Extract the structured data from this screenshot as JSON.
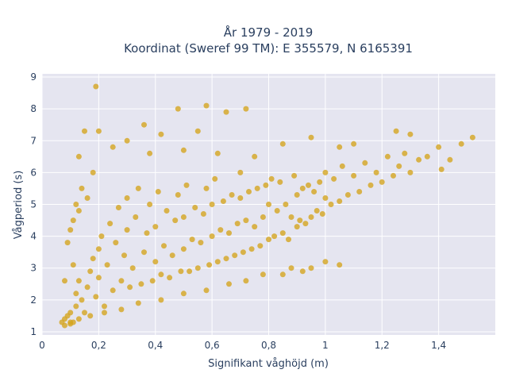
{
  "chart_data": {
    "type": "scatter",
    "title_line1": "År 1979 - 2019",
    "title_line2": "Koordinat (Sweref 99 TM): E 355579, N 6165391",
    "xlabel": "Signifikant våghöjd (m)",
    "ylabel": "Vågperiod (s)",
    "xlim": [
      0,
      1.6
    ],
    "ylim": [
      0.9,
      9.1
    ],
    "x_ticks": [
      0,
      0.2,
      0.4,
      0.6,
      0.8,
      1.0,
      1.2,
      1.4
    ],
    "x_tick_labels": [
      "0",
      "0,2",
      "0,4",
      "0,6",
      "0,8",
      "1",
      "1,2",
      "1,4"
    ],
    "y_ticks": [
      1,
      2,
      3,
      4,
      5,
      6,
      7,
      8,
      9
    ],
    "y_tick_labels": [
      "1",
      "2",
      "3",
      "4",
      "5",
      "6",
      "7",
      "8",
      "9"
    ],
    "grid": true,
    "marker_color": "#d4a520",
    "background_color": "#e5e5f0",
    "series": [
      {
        "points": [
          [
            0.07,
            1.3
          ],
          [
            0.08,
            1.4
          ],
          [
            0.09,
            1.5
          ],
          [
            0.1,
            1.3
          ],
          [
            0.1,
            1.6
          ],
          [
            0.12,
            1.8
          ],
          [
            0.12,
            2.2
          ],
          [
            0.13,
            2.6
          ],
          [
            0.14,
            2.0
          ],
          [
            0.15,
            1.6
          ],
          [
            0.16,
            2.4
          ],
          [
            0.17,
            2.9
          ],
          [
            0.18,
            3.3
          ],
          [
            0.19,
            2.1
          ],
          [
            0.2,
            2.7
          ],
          [
            0.2,
            3.6
          ],
          [
            0.21,
            4.0
          ],
          [
            0.22,
            1.8
          ],
          [
            0.23,
            3.1
          ],
          [
            0.24,
            4.4
          ],
          [
            0.25,
            2.3
          ],
          [
            0.26,
            3.8
          ],
          [
            0.27,
            4.9
          ],
          [
            0.28,
            2.6
          ],
          [
            0.29,
            3.4
          ],
          [
            0.3,
            4.2
          ],
          [
            0.3,
            5.2
          ],
          [
            0.31,
            2.4
          ],
          [
            0.32,
            3.0
          ],
          [
            0.33,
            4.6
          ],
          [
            0.34,
            5.5
          ],
          [
            0.35,
            2.5
          ],
          [
            0.36,
            3.5
          ],
          [
            0.37,
            4.1
          ],
          [
            0.38,
            5.0
          ],
          [
            0.39,
            2.6
          ],
          [
            0.4,
            3.2
          ],
          [
            0.4,
            4.3
          ],
          [
            0.41,
            5.4
          ],
          [
            0.42,
            2.8
          ],
          [
            0.43,
            3.7
          ],
          [
            0.44,
            4.8
          ],
          [
            0.45,
            2.7
          ],
          [
            0.46,
            3.4
          ],
          [
            0.47,
            4.5
          ],
          [
            0.48,
            5.3
          ],
          [
            0.49,
            2.9
          ],
          [
            0.5,
            3.6
          ],
          [
            0.5,
            4.6
          ],
          [
            0.51,
            5.6
          ],
          [
            0.52,
            2.9
          ],
          [
            0.53,
            3.9
          ],
          [
            0.54,
            4.9
          ],
          [
            0.55,
            3.0
          ],
          [
            0.56,
            3.8
          ],
          [
            0.57,
            4.7
          ],
          [
            0.58,
            5.5
          ],
          [
            0.59,
            3.1
          ],
          [
            0.6,
            4.0
          ],
          [
            0.6,
            5.0
          ],
          [
            0.61,
            5.8
          ],
          [
            0.62,
            3.2
          ],
          [
            0.63,
            4.2
          ],
          [
            0.64,
            5.1
          ],
          [
            0.65,
            3.3
          ],
          [
            0.66,
            4.1
          ],
          [
            0.67,
            5.3
          ],
          [
            0.68,
            3.4
          ],
          [
            0.69,
            4.4
          ],
          [
            0.7,
            5.2
          ],
          [
            0.7,
            6.0
          ],
          [
            0.71,
            3.5
          ],
          [
            0.72,
            4.5
          ],
          [
            0.73,
            5.4
          ],
          [
            0.74,
            3.6
          ],
          [
            0.75,
            4.3
          ],
          [
            0.76,
            5.5
          ],
          [
            0.77,
            3.7
          ],
          [
            0.78,
            4.6
          ],
          [
            0.79,
            5.6
          ],
          [
            0.8,
            3.9
          ],
          [
            0.8,
            5.0
          ],
          [
            0.81,
            5.8
          ],
          [
            0.82,
            4.0
          ],
          [
            0.83,
            4.8
          ],
          [
            0.84,
            5.7
          ],
          [
            0.85,
            4.1
          ],
          [
            0.86,
            5.0
          ],
          [
            0.87,
            3.9
          ],
          [
            0.88,
            4.6
          ],
          [
            0.89,
            5.9
          ],
          [
            0.9,
            4.3
          ],
          [
            0.9,
            5.3
          ],
          [
            0.91,
            4.5
          ],
          [
            0.92,
            5.5
          ],
          [
            0.93,
            4.4
          ],
          [
            0.94,
            5.6
          ],
          [
            0.95,
            4.6
          ],
          [
            0.96,
            5.4
          ],
          [
            0.97,
            4.8
          ],
          [
            0.98,
            5.7
          ],
          [
            0.99,
            4.7
          ],
          [
            1.0,
            5.2
          ],
          [
            1.0,
            6.0
          ],
          [
            1.02,
            5.0
          ],
          [
            1.03,
            5.8
          ],
          [
            1.05,
            5.1
          ],
          [
            1.06,
            6.2
          ],
          [
            1.08,
            5.3
          ],
          [
            1.1,
            5.9
          ],
          [
            1.12,
            5.4
          ],
          [
            1.14,
            6.3
          ],
          [
            1.16,
            5.6
          ],
          [
            1.18,
            6.0
          ],
          [
            1.2,
            5.7
          ],
          [
            1.22,
            6.5
          ],
          [
            1.24,
            5.9
          ],
          [
            1.26,
            6.2
          ],
          [
            1.28,
            6.6
          ],
          [
            1.3,
            6.0
          ],
          [
            1.33,
            6.4
          ],
          [
            1.36,
            6.5
          ],
          [
            1.4,
            6.8
          ],
          [
            1.44,
            6.4
          ],
          [
            1.48,
            6.9
          ],
          [
            1.52,
            7.1
          ],
          [
            1.3,
            7.2
          ],
          [
            1.25,
            7.3
          ],
          [
            1.41,
            6.1
          ],
          [
            1.1,
            6.9
          ],
          [
            0.19,
            8.7
          ],
          [
            0.48,
            8.0
          ],
          [
            0.58,
            8.1
          ],
          [
            0.72,
            8.0
          ],
          [
            0.65,
            7.9
          ],
          [
            0.36,
            7.5
          ],
          [
            0.15,
            7.3
          ],
          [
            0.2,
            7.3
          ],
          [
            0.42,
            7.2
          ],
          [
            0.3,
            7.0
          ],
          [
            0.55,
            7.3
          ],
          [
            0.85,
            6.9
          ],
          [
            0.95,
            7.1
          ],
          [
            1.05,
            6.8
          ],
          [
            0.13,
            6.5
          ],
          [
            0.25,
            6.8
          ],
          [
            0.38,
            6.6
          ],
          [
            0.5,
            6.7
          ],
          [
            0.62,
            6.6
          ],
          [
            0.75,
            6.5
          ],
          [
            0.16,
            5.2
          ],
          [
            0.11,
            4.5
          ],
          [
            0.09,
            3.8
          ],
          [
            0.08,
            2.6
          ],
          [
            0.11,
            3.1
          ],
          [
            0.14,
            5.5
          ],
          [
            0.18,
            6.0
          ],
          [
            0.12,
            5.0
          ],
          [
            0.1,
            4.2
          ],
          [
            0.13,
            4.8
          ],
          [
            0.85,
            2.8
          ],
          [
            0.88,
            3.0
          ],
          [
            0.92,
            2.9
          ],
          [
            1.0,
            3.2
          ],
          [
            1.05,
            3.1
          ],
          [
            0.95,
            3.0
          ],
          [
            0.78,
            2.8
          ],
          [
            0.72,
            2.6
          ],
          [
            0.66,
            2.5
          ],
          [
            0.58,
            2.3
          ],
          [
            0.5,
            2.2
          ],
          [
            0.42,
            2.0
          ],
          [
            0.34,
            1.9
          ],
          [
            0.28,
            1.7
          ],
          [
            0.22,
            1.6
          ],
          [
            0.17,
            1.5
          ],
          [
            0.13,
            1.4
          ],
          [
            0.11,
            1.3
          ],
          [
            0.1,
            1.25
          ],
          [
            0.08,
            1.2
          ]
        ]
      }
    ]
  }
}
